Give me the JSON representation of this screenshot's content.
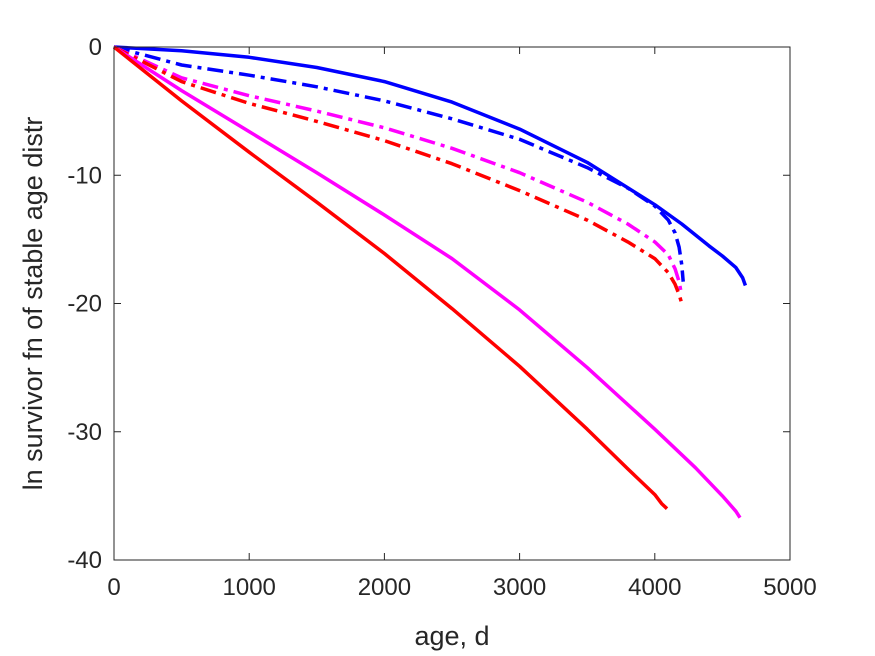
{
  "chart_data": {
    "type": "line",
    "xlabel": "age, d",
    "ylabel": "ln survivor fn of stable age distr",
    "xlim": [
      0,
      5000
    ],
    "ylim": [
      -40,
      0
    ],
    "xticks": [
      0,
      1000,
      2000,
      3000,
      4000,
      5000
    ],
    "yticks": [
      0,
      -10,
      -20,
      -30,
      -40
    ],
    "xtick_labels": [
      "0",
      "1000",
      "2000",
      "3000",
      "4000",
      "5000"
    ],
    "ytick_labels": [
      "0",
      "-10",
      "-20",
      "-30",
      "-40"
    ],
    "grid": false,
    "legend": "none",
    "series": [
      {
        "color": "#0000ff",
        "style": "solid",
        "x": [
          0,
          500,
          1000,
          1500,
          2000,
          2500,
          3000,
          3500,
          4000,
          4200,
          4400,
          4500,
          4600,
          4650,
          4670
        ],
        "y": [
          0,
          -0.3,
          -0.8,
          -1.6,
          -2.7,
          -4.3,
          -6.4,
          -9.0,
          -12.3,
          -13.8,
          -15.5,
          -16.3,
          -17.2,
          -18.0,
          -18.6
        ]
      },
      {
        "color": "#0000ff",
        "style": "dashdot",
        "x": [
          0,
          500,
          1000,
          1500,
          2000,
          2500,
          3000,
          3500,
          3800,
          4000,
          4100,
          4150,
          4180,
          4200,
          4210
        ],
        "y": [
          0,
          -1.4,
          -2.2,
          -3.1,
          -4.2,
          -5.6,
          -7.2,
          -9.4,
          -11.0,
          -12.4,
          -13.5,
          -14.5,
          -15.6,
          -17.0,
          -18.3
        ]
      },
      {
        "color": "#ff00ff",
        "style": "dashdot",
        "x": [
          0,
          500,
          1000,
          1500,
          2000,
          2500,
          3000,
          3500,
          3800,
          4000,
          4100,
          4150,
          4180,
          4200
        ],
        "y": [
          0,
          -2.4,
          -3.8,
          -5.0,
          -6.3,
          -7.9,
          -9.8,
          -12.1,
          -13.8,
          -15.2,
          -16.2,
          -17.3,
          -18.3,
          -19.4
        ]
      },
      {
        "color": "#ff0000",
        "style": "dashdot",
        "x": [
          0,
          500,
          1000,
          1500,
          2000,
          2500,
          3000,
          3500,
          3800,
          4000,
          4100,
          4150,
          4180,
          4200
        ],
        "y": [
          0,
          -2.7,
          -4.4,
          -5.8,
          -7.3,
          -9.1,
          -11.2,
          -13.5,
          -15.2,
          -16.5,
          -17.6,
          -18.5,
          -19.3,
          -20.0
        ]
      },
      {
        "color": "#ff00ff",
        "style": "solid",
        "x": [
          0,
          500,
          1000,
          1500,
          2000,
          2500,
          3000,
          3500,
          4000,
          4300,
          4500,
          4600,
          4630
        ],
        "y": [
          0,
          -3.4,
          -6.6,
          -9.8,
          -13.1,
          -16.5,
          -20.5,
          -25.0,
          -29.8,
          -32.8,
          -35.0,
          -36.2,
          -36.7
        ]
      },
      {
        "color": "#ff0000",
        "style": "solid",
        "x": [
          0,
          500,
          1000,
          1500,
          2000,
          2500,
          3000,
          3500,
          3800,
          4000,
          4050,
          4090
        ],
        "y": [
          0,
          -4.2,
          -8.2,
          -12.1,
          -16.1,
          -20.4,
          -24.9,
          -29.8,
          -32.9,
          -34.9,
          -35.6,
          -36.0
        ]
      }
    ]
  }
}
